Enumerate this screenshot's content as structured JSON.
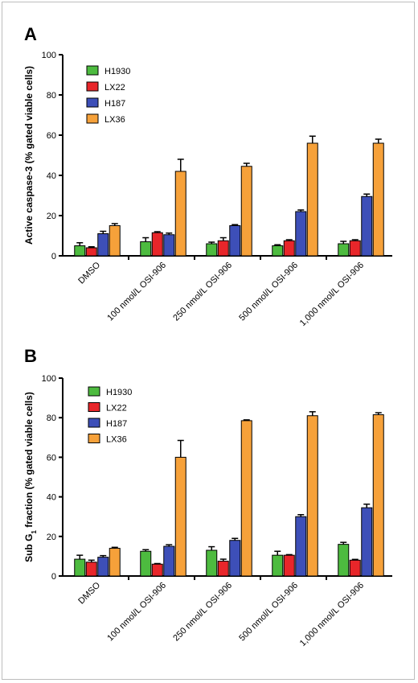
{
  "colors": {
    "H1930": "#4dbb3f",
    "LX22": "#e8262a",
    "H187": "#3d4fb8",
    "LX36": "#f6a13a"
  },
  "chart_data": [
    {
      "panel": "A",
      "type": "bar",
      "ylabel": "Active caspase-3 (% gated viable cells)",
      "ylim": [
        0,
        100
      ],
      "yticks": [
        "0",
        "20",
        "40",
        "60",
        "80",
        "100"
      ],
      "categories": [
        "DMSO",
        "100 nmol/L OSI-906",
        "250 nmol/L OSI-906",
        "500 nmol/L OSI-906",
        "1,000 nmol/L OSI-906"
      ],
      "legend_position": "top-left",
      "series": [
        {
          "name": "H1930",
          "values": [
            5,
            7,
            6,
            5,
            6
          ],
          "errors": [
            1.5,
            2,
            0.8,
            0.5,
            1.2
          ]
        },
        {
          "name": "LX22",
          "values": [
            4,
            11.5,
            7.5,
            7.5,
            7.5
          ],
          "errors": [
            0.5,
            0.5,
            1.5,
            0.5,
            0.5
          ]
        },
        {
          "name": "H187",
          "values": [
            11,
            10.5,
            15,
            22,
            29.5
          ],
          "errors": [
            1.2,
            0.8,
            0.5,
            0.8,
            1.2
          ]
        },
        {
          "name": "LX36",
          "values": [
            15,
            42,
            44.5,
            56,
            56
          ],
          "errors": [
            1,
            6,
            1.5,
            3.5,
            2
          ]
        }
      ]
    },
    {
      "panel": "B",
      "type": "bar",
      "ylabel_main": "Sub G",
      "ylabel_sub": "1",
      "ylabel_rest": " fraction (% gated viable cells)",
      "ylim": [
        0,
        100
      ],
      "yticks": [
        "0",
        "20",
        "40",
        "60",
        "80",
        "100"
      ],
      "categories": [
        "DMSO",
        "100 nmol/L OSI-906",
        "250 nmol/L OSI-906",
        "500 nmol/L OSI-906",
        "1,000 nmol/L OSI-906"
      ],
      "legend_position": "top-left",
      "series": [
        {
          "name": "H1930",
          "values": [
            8.5,
            12.5,
            13,
            10.5,
            16
          ],
          "errors": [
            2,
            0.8,
            1.8,
            2,
            1
          ]
        },
        {
          "name": "LX22",
          "values": [
            7,
            6,
            7.5,
            10.5,
            8
          ],
          "errors": [
            1,
            0.3,
            1,
            0.3,
            0.4
          ]
        },
        {
          "name": "H187",
          "values": [
            9.5,
            15,
            18,
            30,
            34.5
          ],
          "errors": [
            0.8,
            0.8,
            1,
            1,
            1.8
          ]
        },
        {
          "name": "LX36",
          "values": [
            14,
            60,
            78.5,
            81,
            81.5
          ],
          "errors": [
            0.5,
            8.5,
            0.4,
            2,
            1
          ]
        }
      ]
    }
  ]
}
